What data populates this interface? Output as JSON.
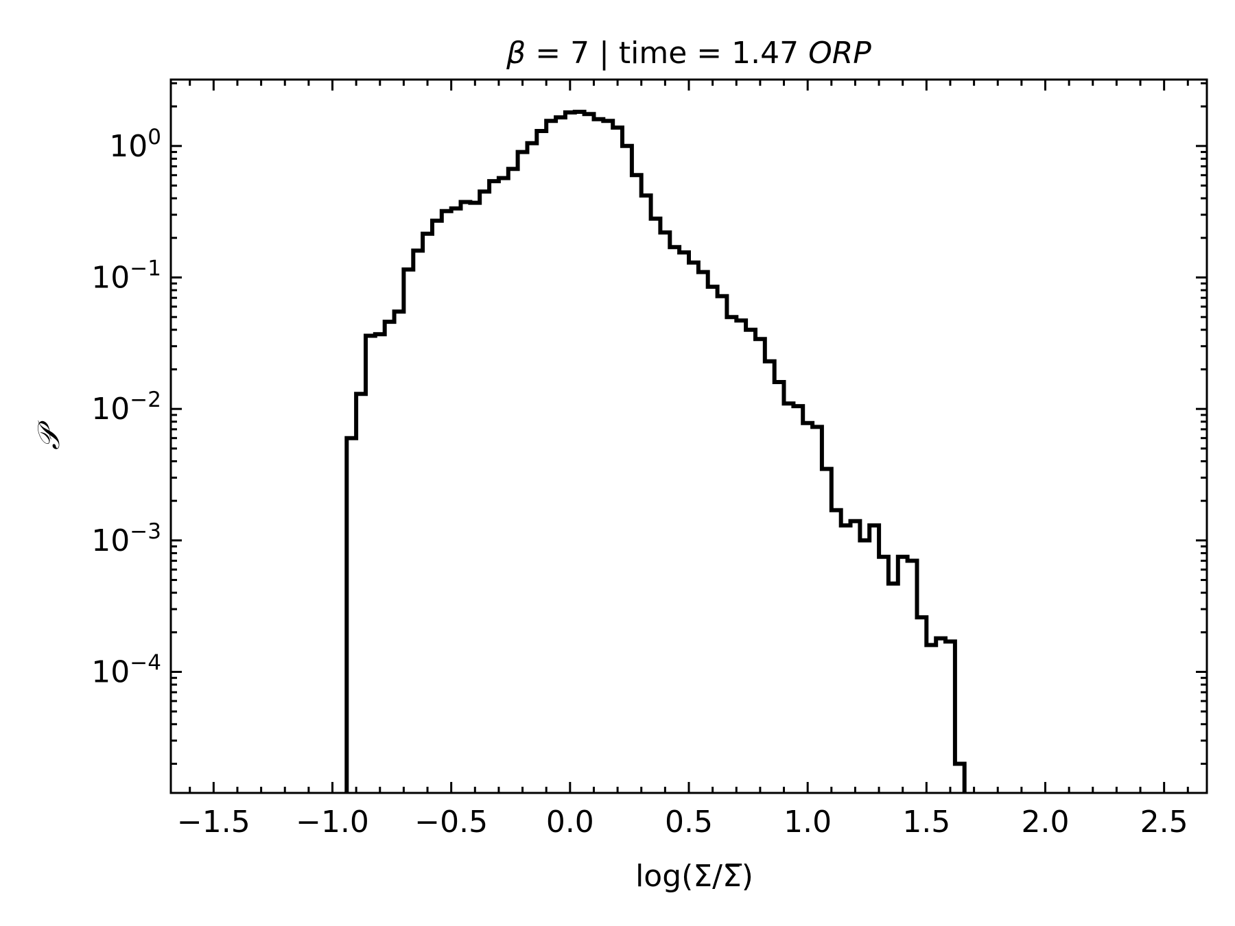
{
  "chart_data": {
    "type": "histogram",
    "title": {
      "beta_symbol": "β",
      "beta_rest": " = 7 | time = 1.47 ",
      "orp": "ORP"
    },
    "xlabel": "log(Σ/Σ̅)",
    "ylabel": "𝒫",
    "x_scale": "linear",
    "y_scale": "log",
    "xlim": [
      -1.68,
      2.68
    ],
    "ylim": [
      1.2e-05,
      3.2
    ],
    "x_ticks": [
      {
        "value": -1.5,
        "label": "−1.5"
      },
      {
        "value": -1.0,
        "label": "−1.0"
      },
      {
        "value": -0.5,
        "label": "−0.5"
      },
      {
        "value": 0.0,
        "label": "0.0"
      },
      {
        "value": 0.5,
        "label": "0.5"
      },
      {
        "value": 1.0,
        "label": "1.0"
      },
      {
        "value": 1.5,
        "label": "1.5"
      },
      {
        "value": 2.0,
        "label": "2.0"
      },
      {
        "value": 2.5,
        "label": "2.5"
      }
    ],
    "y_ticks": [
      {
        "value": 1,
        "base": "10",
        "exp": "0"
      },
      {
        "value": 0.1,
        "base": "10",
        "exp": "−1"
      },
      {
        "value": 0.01,
        "base": "10",
        "exp": "−2"
      },
      {
        "value": 0.001,
        "base": "10",
        "exp": "−3"
      },
      {
        "value": 0.0001,
        "base": "10",
        "exp": "−4"
      }
    ],
    "grid": false,
    "line_color": "#000000",
    "series": [
      {
        "bin_edges": [
          -0.94,
          -0.9,
          -0.86,
          -0.82,
          -0.78,
          -0.74,
          -0.7,
          -0.66,
          -0.62,
          -0.58,
          -0.54,
          -0.5,
          -0.46,
          -0.42,
          -0.38,
          -0.34,
          -0.3,
          -0.26,
          -0.22,
          -0.18,
          -0.14,
          -0.1,
          -0.06,
          -0.02,
          0.02,
          0.06,
          0.1,
          0.14,
          0.18,
          0.22,
          0.26,
          0.3,
          0.34,
          0.38,
          0.42,
          0.46,
          0.5,
          0.54,
          0.58,
          0.62,
          0.66,
          0.7,
          0.74,
          0.78,
          0.82,
          0.86,
          0.9,
          0.94,
          0.98,
          1.02,
          1.06,
          1.1,
          1.14,
          1.18,
          1.22,
          1.26,
          1.3,
          1.34,
          1.38,
          1.42,
          1.46,
          1.5,
          1.54,
          1.58,
          1.62,
          1.66
        ],
        "values": [
          0.006,
          0.013,
          0.036,
          0.037,
          0.046,
          0.055,
          0.115,
          0.16,
          0.215,
          0.27,
          0.32,
          0.335,
          0.375,
          0.37,
          0.45,
          0.54,
          0.57,
          0.67,
          0.9,
          1.05,
          1.3,
          1.55,
          1.65,
          1.8,
          1.82,
          1.75,
          1.6,
          1.55,
          1.38,
          1.0,
          0.6,
          0.42,
          0.28,
          0.22,
          0.17,
          0.155,
          0.13,
          0.11,
          0.085,
          0.072,
          0.05,
          0.047,
          0.04,
          0.034,
          0.023,
          0.016,
          0.011,
          0.0105,
          0.0078,
          0.0073,
          0.0035,
          0.0017,
          0.0013,
          0.0014,
          0.001,
          0.0013,
          0.00075,
          0.00047,
          0.00075,
          0.0007,
          0.00026,
          0.00016,
          0.00018,
          0.00017,
          2e-05
        ]
      }
    ]
  }
}
